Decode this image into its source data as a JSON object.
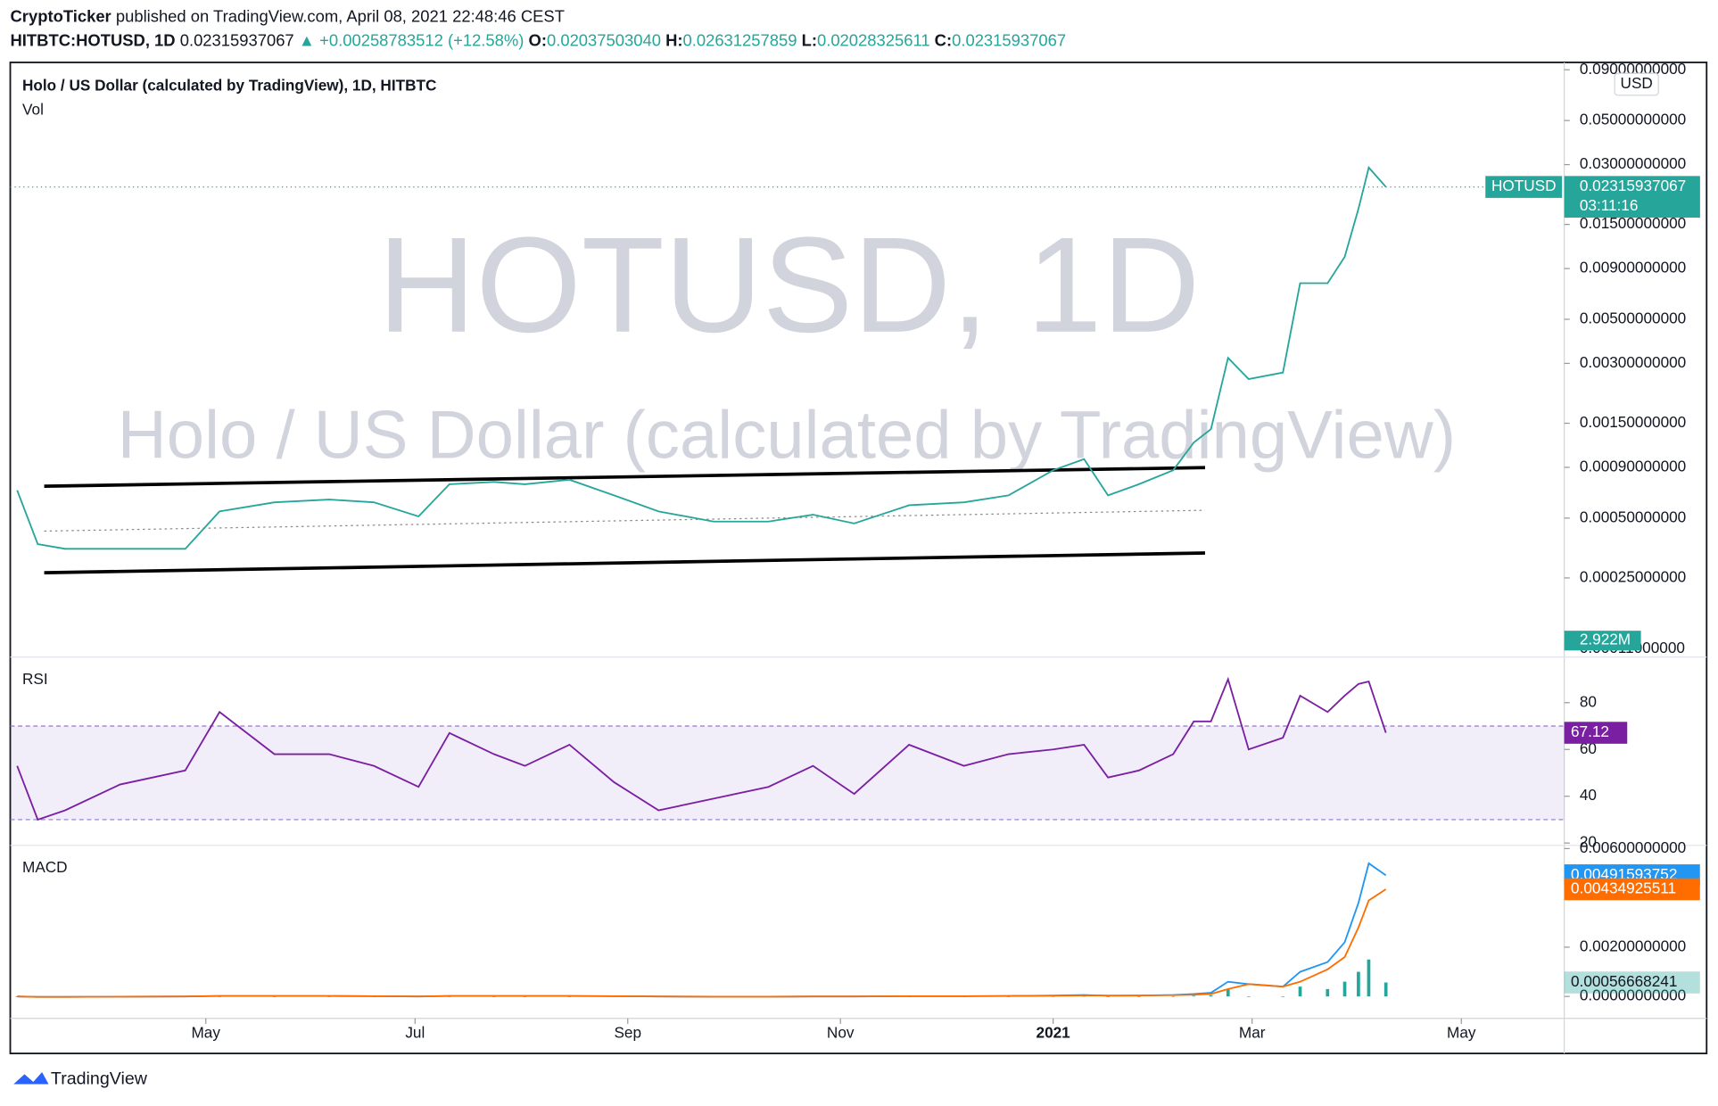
{
  "header": {
    "publisher": "CryptoTicker",
    "published": "published on TradingView.com, April 08, 2021 22:48:46 CEST",
    "symbol": "HITBTC:HOTUSD, 1D",
    "last": "0.02315937067",
    "change": "▲ +0.00258783512 (+12.58%)",
    "ohlc": [
      {
        "label": "O:",
        "value": "0.02037503040"
      },
      {
        "label": "H:",
        "value": "0.02631257859"
      },
      {
        "label": "L:",
        "value": "0.02028325611"
      },
      {
        "label": "C:",
        "value": "0.02315937067"
      }
    ]
  },
  "watermark": {
    "symbol": "HOTUSD, 1D",
    "name": "Holo / US Dollar (calculated by TradingView)"
  },
  "footer": "TradingView",
  "chart_data": [
    {
      "type": "line",
      "title": "Holo / US Dollar (calculated by TradingView), 1D, HITBTC",
      "subtitle": "Vol",
      "currency": "USD",
      "countdown": "03:11:16",
      "volume_label": "2.922M",
      "log_scale": true,
      "x": [
        2,
        8,
        16,
        32,
        51,
        61,
        77,
        93,
        106,
        119,
        128,
        141,
        150,
        163,
        176,
        189,
        205,
        221,
        234,
        246,
        262,
        278,
        291,
        304,
        313,
        320,
        329,
        339,
        345,
        350,
        355,
        361,
        371,
        376,
        384,
        389,
        393,
        396,
        401
      ],
      "series": [
        {
          "name": "HOTUSD",
          "color": "#26a69a",
          "values": [
            0.00069,
            0.00037,
            0.00035,
            0.00035,
            0.00035,
            0.00054,
            0.0006,
            0.00062,
            0.0006,
            0.00051,
            0.00074,
            0.00076,
            0.00074,
            0.00078,
            0.00065,
            0.00054,
            0.00048,
            0.00048,
            0.00052,
            0.00047,
            0.00058,
            0.0006,
            0.00065,
            0.00087,
            0.00099,
            0.00065,
            0.00074,
            0.00087,
            0.0012,
            0.0014,
            0.0032,
            0.0025,
            0.0027,
            0.0076,
            0.0076,
            0.0103,
            0.018,
            0.029,
            0.02315937067
          ]
        }
      ],
      "xlim": [
        0,
        453
      ],
      "xticks": [
        {
          "value": 57,
          "label": "May"
        },
        {
          "value": 118,
          "label": "Jul"
        },
        {
          "value": 180,
          "label": "Sep"
        },
        {
          "value": 242,
          "label": "Nov"
        },
        {
          "value": 304,
          "label": "2021"
        },
        {
          "value": 362,
          "label": "Mar"
        },
        {
          "value": 423,
          "label": "May"
        }
      ],
      "ylim": [
        0.0001,
        0.098
      ],
      "yticks": [
        {
          "value": 0.09,
          "label": "0.09000000000"
        },
        {
          "value": 0.05,
          "label": "0.05000000000"
        },
        {
          "value": 0.03,
          "label": "0.03000000000"
        },
        {
          "value": 0.015,
          "label": "0.01500000000"
        },
        {
          "value": 0.009,
          "label": "0.00900000000"
        },
        {
          "value": 0.005,
          "label": "0.00500000000"
        },
        {
          "value": 0.003,
          "label": "0.00300000000"
        },
        {
          "value": 0.0015,
          "label": "0.00150000000"
        },
        {
          "value": 0.0009,
          "label": "0.00090000000"
        },
        {
          "value": 0.0005,
          "label": "0.00050000000"
        },
        {
          "value": 0.00025,
          "label": "0.00025000000"
        },
        {
          "value": 0.00011,
          "label": "0.00011000000"
        }
      ]
    },
    {
      "type": "line",
      "title": "RSI",
      "bands": [
        30,
        70
      ],
      "x": [
        2,
        8,
        16,
        32,
        51,
        61,
        77,
        93,
        106,
        119,
        128,
        141,
        150,
        163,
        176,
        189,
        205,
        221,
        234,
        246,
        262,
        278,
        291,
        304,
        313,
        320,
        329,
        339,
        345,
        350,
        355,
        361,
        371,
        376,
        384,
        389,
        393,
        396,
        401
      ],
      "series": [
        {
          "color": "#7b1fa2",
          "values": [
            53,
            30,
            34,
            45,
            51,
            76,
            58,
            58,
            53,
            44,
            67,
            58,
            53,
            62,
            46,
            34,
            39,
            44,
            53,
            41,
            62,
            53,
            58,
            60,
            62,
            48,
            51,
            58,
            72,
            72,
            90,
            60,
            65,
            83,
            76,
            83,
            88,
            89,
            67.12
          ]
        }
      ],
      "ylim": [
        19,
        99.5
      ],
      "yticks": [
        80,
        60,
        40,
        20
      ]
    },
    {
      "type": "line",
      "title": "MACD",
      "x": [
        2,
        8,
        16,
        32,
        51,
        61,
        77,
        93,
        106,
        119,
        128,
        141,
        150,
        163,
        176,
        189,
        205,
        221,
        234,
        246,
        262,
        278,
        291,
        304,
        313,
        320,
        329,
        339,
        345,
        350,
        355,
        361,
        371,
        376,
        384,
        389,
        393,
        396,
        401
      ],
      "series": [
        {
          "style": "histogram",
          "color": "#26a69a",
          "values": [
            0,
            0,
            0,
            0,
            0,
            0,
            0,
            0,
            0,
            0,
            0,
            0,
            0,
            0,
            0,
            0,
            0,
            0,
            0,
            0,
            0,
            0,
            0,
            1e-05,
            2e-05,
            -1e-05,
            0,
            1e-05,
            3e-05,
            5e-05,
            0.0003,
            0,
            0,
            0.0004,
            0.0003,
            0.0006,
            0.001,
            0.0015,
            0.00056668241
          ]
        },
        {
          "color": "#2196f3",
          "values": [
            0,
            -2e-05,
            -2e-05,
            -1e-05,
            0,
            2e-05,
            2e-05,
            2e-05,
            1e-05,
            0,
            2e-05,
            2e-05,
            2e-05,
            2e-05,
            1e-05,
            0,
            -1e-05,
            -1e-05,
            0,
            0,
            1e-05,
            1e-05,
            2e-05,
            4e-05,
            6e-05,
            3e-05,
            4e-05,
            6e-05,
            0.0001,
            0.00015,
            0.0006,
            0.0005,
            0.0004,
            0.001,
            0.0014,
            0.0022,
            0.0038,
            0.0054,
            0.00491593752
          ]
        },
        {
          "color": "#ff6d00",
          "values": [
            0,
            -2e-05,
            -2e-05,
            -1e-05,
            0,
            2e-05,
            2e-05,
            2e-05,
            1e-05,
            0,
            2e-05,
            2e-05,
            2e-05,
            2e-05,
            1e-05,
            0,
            -1e-05,
            -1e-05,
            0,
            0,
            1e-05,
            1e-05,
            2e-05,
            3e-05,
            4e-05,
            4e-05,
            4e-05,
            5e-05,
            7e-05,
            0.0001,
            0.0003,
            0.0005,
            0.0004,
            0.0006,
            0.0011,
            0.0016,
            0.0028,
            0.0039,
            0.00434925511
          ]
        }
      ],
      "ylim": [
        -0.00089,
        0.00613
      ],
      "yticks": [
        {
          "value": 0.006,
          "label": "0.00600000000"
        },
        {
          "value": 0.002,
          "label": "0.00200000000"
        },
        {
          "value": 0,
          "label": "0.00000000000"
        }
      ]
    }
  ]
}
